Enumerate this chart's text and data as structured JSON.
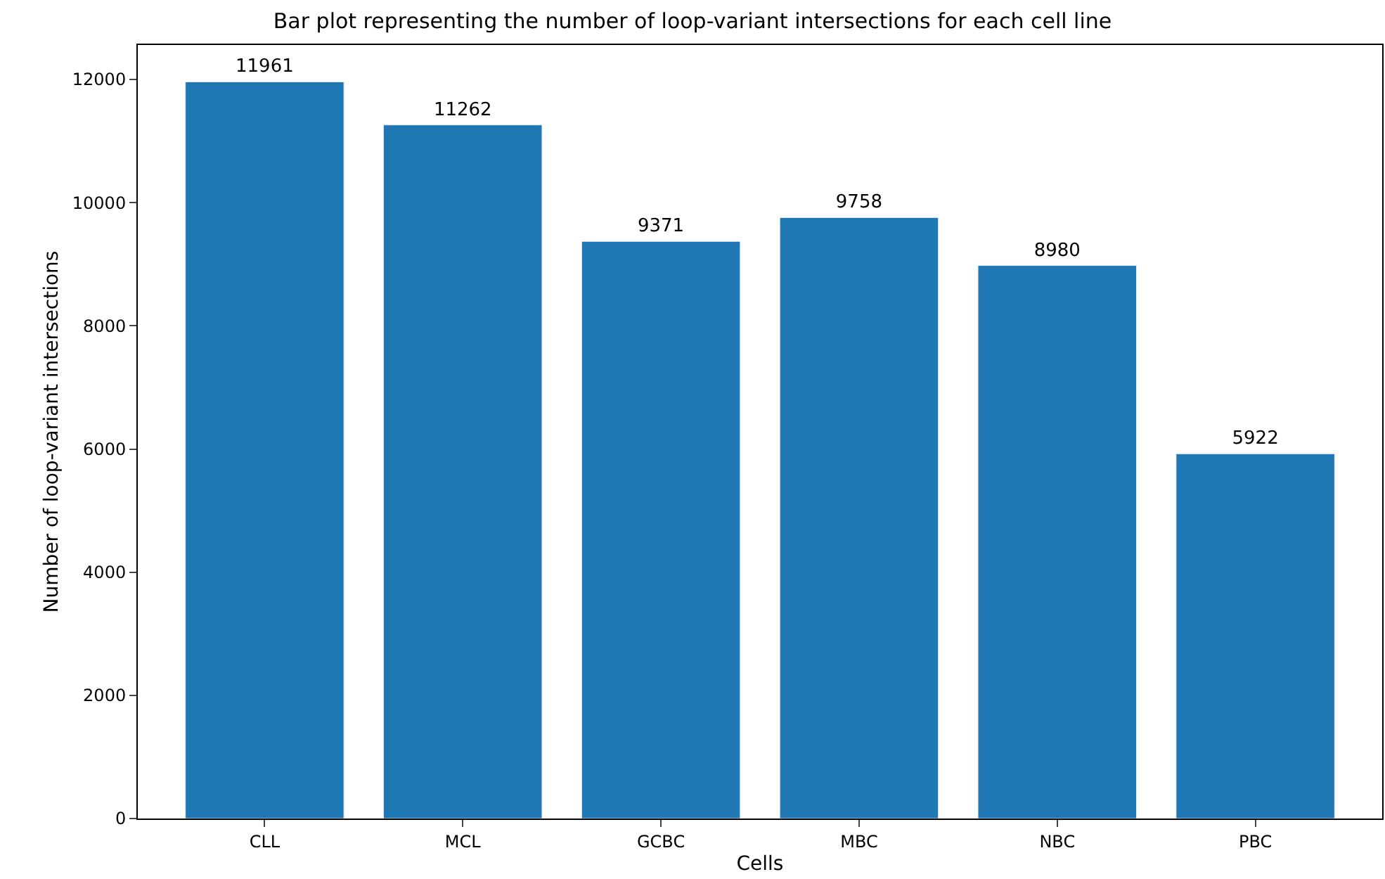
{
  "chart_data": {
    "type": "bar",
    "title": "Bar plot representing the number of loop-variant intersections for each cell line",
    "xlabel": "Cells",
    "ylabel": "Number of loop-variant intersections",
    "categories": [
      "CLL",
      "MCL",
      "GCBC",
      "MBC",
      "NBC",
      "PBC"
    ],
    "values": [
      11961,
      11262,
      9371,
      9758,
      8980,
      5922
    ],
    "color": "#1f77b4",
    "ylim": [
      0,
      12560
    ],
    "yticks": [
      0,
      2000,
      4000,
      6000,
      8000,
      10000,
      12000
    ],
    "data_labels": true
  }
}
